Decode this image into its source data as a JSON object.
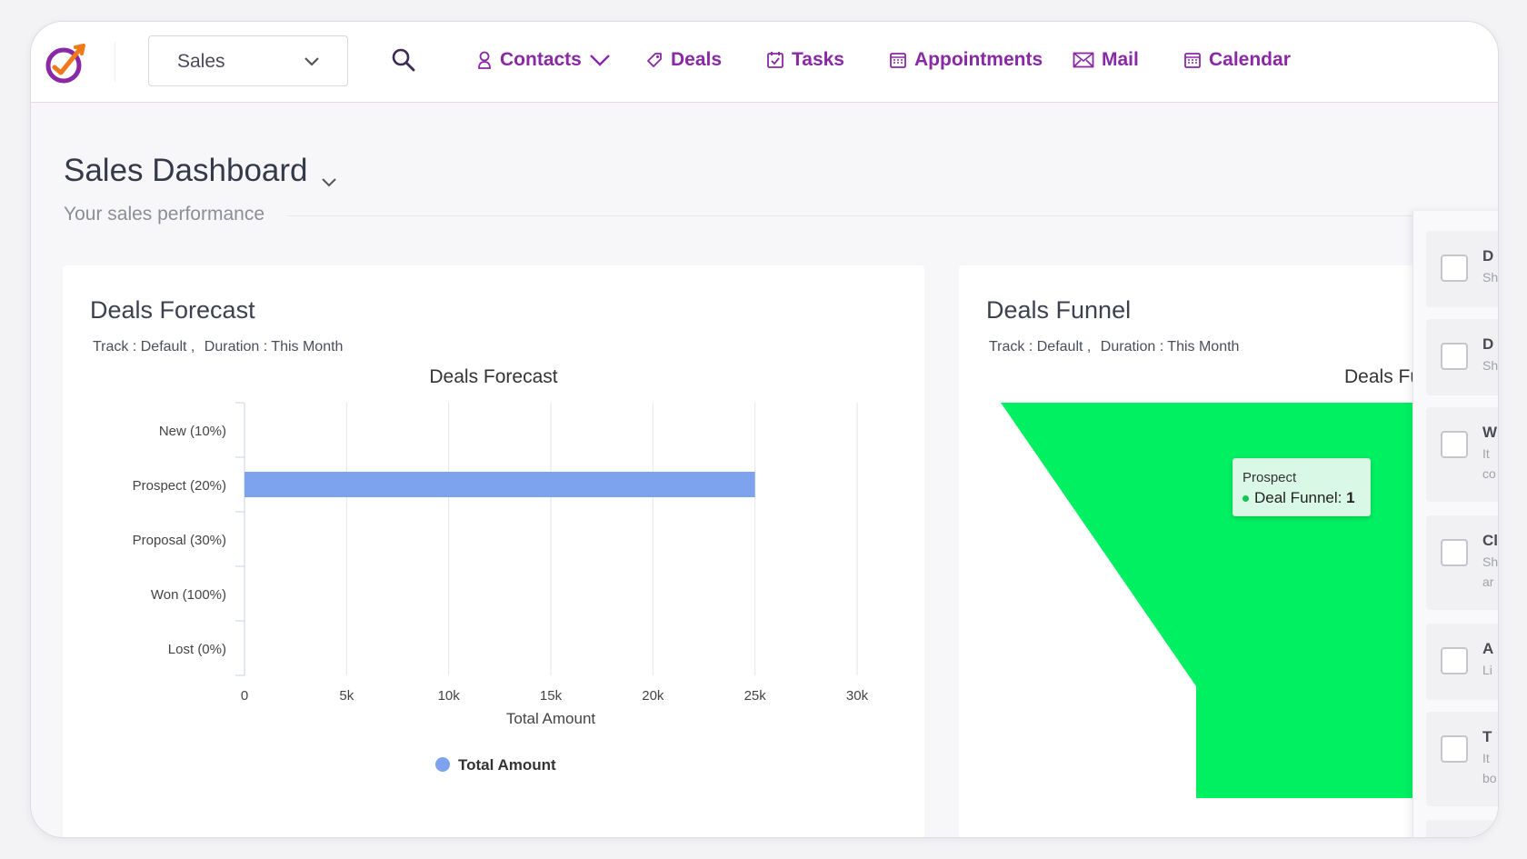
{
  "header": {
    "module_select": {
      "value": "Sales"
    },
    "nav": [
      {
        "label": "Contacts",
        "icon": "user-icon"
      },
      {
        "label": "Deals",
        "icon": "tag-icon"
      },
      {
        "label": "Tasks",
        "icon": "task-icon"
      },
      {
        "label": "Appointments",
        "icon": "calendar-grid-icon"
      },
      {
        "label": "Mail",
        "icon": "mail-icon"
      },
      {
        "label": "Calendar",
        "icon": "calendar-grid-icon"
      }
    ],
    "accent_color": "#8a28a6"
  },
  "page": {
    "title": "Sales Dashboard",
    "subtitle": "Your sales performance"
  },
  "forecast_card": {
    "title": "Deals Forecast",
    "meta": {
      "track": "Track : Default ,",
      "duration": "Duration : This Month"
    }
  },
  "funnel_card": {
    "title": "Deals Funnel",
    "meta": {
      "track": "Track : Default ,",
      "duration": "Duration : This Month"
    },
    "chart_title_visible": "Deals Fu"
  },
  "tooltip": {
    "head": "Prospect",
    "series": "Deal Funnel:",
    "value": "1"
  },
  "side_panel": {
    "items": [
      {
        "title": "D",
        "desc": [
          "Sh"
        ]
      },
      {
        "title": "D",
        "desc": [
          "Sh"
        ]
      },
      {
        "title": "W",
        "desc": [
          "It",
          "co"
        ]
      },
      {
        "title": "Cl",
        "desc": [
          "Sh",
          "ar"
        ]
      },
      {
        "title": "A",
        "desc": [
          "Li"
        ]
      },
      {
        "title": "T",
        "desc": [
          "It",
          "bo"
        ]
      },
      {
        "title": "",
        "desc": []
      }
    ]
  },
  "chart_data": [
    {
      "type": "bar",
      "orientation": "horizontal",
      "title": "Deals Forecast",
      "categories": [
        "New (10%)",
        "Prospect (20%)",
        "Proposal (30%)",
        "Won (100%)",
        "Lost (0%)"
      ],
      "series": [
        {
          "name": "Total Amount",
          "values": [
            0,
            25000,
            0,
            0,
            0
          ],
          "color": "#7ea3ee"
        }
      ],
      "xlabel": "Total Amount",
      "xlim": [
        0,
        30000
      ],
      "xticks": [
        "0",
        "5k",
        "10k",
        "15k",
        "20k",
        "25k",
        "30k"
      ],
      "grid": true,
      "legend": "bottom"
    },
    {
      "type": "funnel",
      "title": "Deals Funnel",
      "categories": [
        "Prospect"
      ],
      "series": [
        {
          "name": "Deal Funnel",
          "values": [
            1
          ],
          "color": "#00f062"
        }
      ]
    }
  ]
}
